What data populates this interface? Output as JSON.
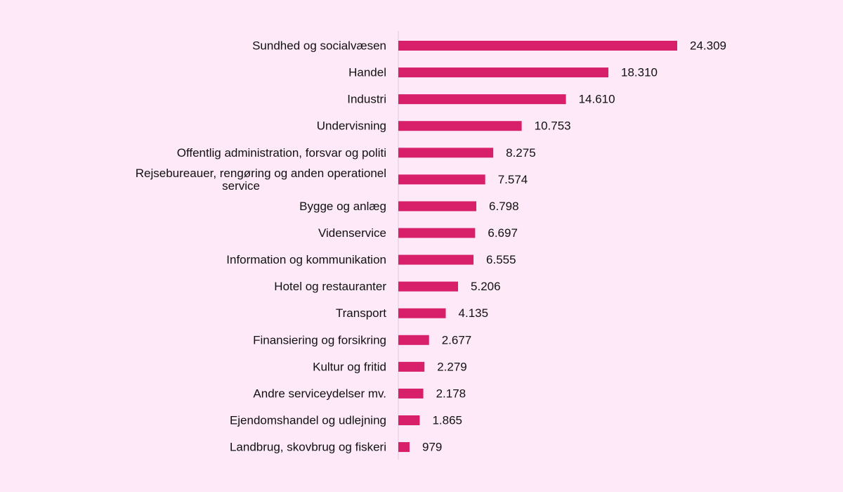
{
  "colors": {
    "background": "#fde9f8",
    "bar": "#d81f6a",
    "axis": "#e3c9dc",
    "text": "#111111"
  },
  "chart_data": {
    "type": "bar",
    "orientation": "horizontal",
    "title": "",
    "xlabel": "",
    "ylabel": "",
    "grid": false,
    "legend": "none",
    "xlim": [
      0,
      24309
    ],
    "categories": [
      "Sundhed og socialvæsen",
      "Handel",
      "Industri",
      "Undervisning",
      "Offentlig administration, forsvar og politi",
      "Rejsebureauer, rengøring og anden operationel service",
      "Bygge og anlæg",
      "Videnservice",
      "Information og kommunikation",
      "Hotel og restauranter",
      "Transport",
      "Finansiering og forsikring",
      "Kultur og fritid",
      "Andre serviceydelser  mv.",
      "Ejendomshandel og udlejning",
      "Landbrug, skovbrug og fiskeri"
    ],
    "values": [
      24309,
      18310,
      14610,
      10753,
      8275,
      7574,
      6798,
      6697,
      6555,
      5206,
      4135,
      2677,
      2279,
      2178,
      1865,
      979
    ],
    "value_labels": [
      "24.309",
      "18.310",
      "14.610",
      "10.753",
      "8.275",
      "7.574",
      "6.798",
      "6.697",
      "6.555",
      "5.206",
      "4.135",
      "2.677",
      "2.279",
      "2.178",
      "1.865",
      "979"
    ]
  }
}
